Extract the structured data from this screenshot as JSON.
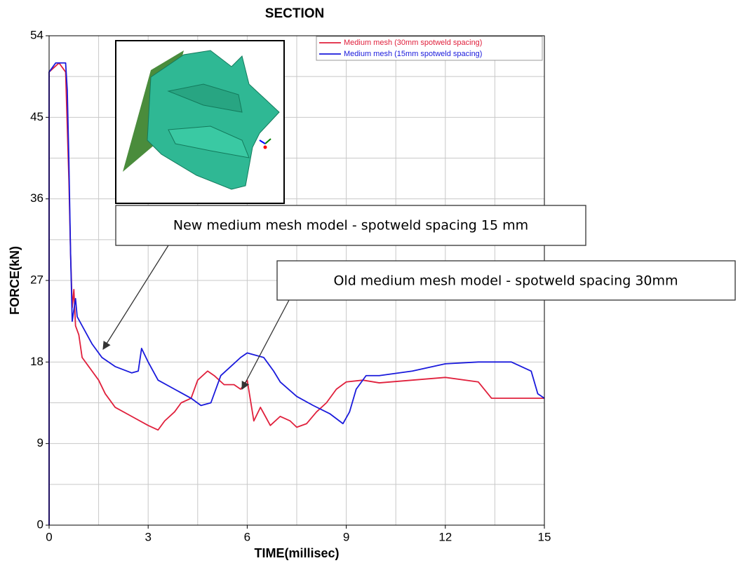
{
  "chart_data": {
    "type": "line",
    "title": "SECTION",
    "x_label": "TIME(millisec)",
    "y_label": "FORCE(kN)",
    "xlim": [
      0,
      15
    ],
    "ylim": [
      0,
      54
    ],
    "xticks": [
      0,
      3,
      6,
      9,
      12,
      15
    ],
    "yticks": [
      0,
      9,
      18,
      27,
      36,
      45,
      54
    ],
    "grid": true,
    "minor_grid": true,
    "legend": "upper right",
    "annotations": [
      "New medium mesh model - spotweld spacing 15 mm",
      "Old medium mesh model - spotweld spacing 30mm"
    ],
    "series": [
      {
        "name": "Medium mesh (30mm spotweld spacing)",
        "color": "#e0203c",
        "x": [
          0,
          0,
          0.3,
          0.5,
          0.6,
          0.65,
          0.7,
          0.75,
          0.8,
          0.9,
          1.0,
          1.2,
          1.5,
          1.7,
          2.0,
          2.5,
          3.0,
          3.3,
          3.5,
          3.8,
          4.0,
          4.3,
          4.5,
          4.8,
          5.0,
          5.3,
          5.6,
          5.8,
          6.0,
          6.2,
          6.4,
          6.7,
          7.0,
          7.3,
          7.5,
          7.8,
          8.1,
          8.4,
          8.7,
          9.0,
          9.5,
          10,
          11,
          12,
          13,
          13.4,
          14,
          15
        ],
        "values": [
          0,
          50,
          51,
          50,
          38,
          30,
          24,
          26,
          22,
          21,
          18.5,
          17.5,
          16,
          14.5,
          13,
          12,
          11,
          10.5,
          11.5,
          12.5,
          13.5,
          14,
          16,
          17,
          16.5,
          15.5,
          15.5,
          15,
          16,
          11.5,
          13,
          11,
          12,
          11.5,
          10.8,
          11.2,
          12.5,
          13.5,
          15,
          15.8,
          16,
          15.7,
          16,
          16.3,
          15.8,
          14,
          14,
          14
        ]
      },
      {
        "name": "Medium mesh (15mm spotweld spacing)",
        "color": "#1a1adc",
        "x": [
          0,
          0,
          0.2,
          0.5,
          0.55,
          0.6,
          0.65,
          0.7,
          0.8,
          0.85,
          1.0,
          1.3,
          1.6,
          2.0,
          2.5,
          2.7,
          2.8,
          3.0,
          3.3,
          3.8,
          4.3,
          4.6,
          4.9,
          5.2,
          5.5,
          5.8,
          6.0,
          6.5,
          6.8,
          7.0,
          7.5,
          8.0,
          8.5,
          8.9,
          9.1,
          9.3,
          9.6,
          10,
          11,
          12,
          13,
          14,
          14.6,
          14.8,
          15
        ],
        "values": [
          0,
          50,
          51,
          51,
          48,
          40,
          30,
          22.5,
          25,
          23,
          22,
          20,
          18.5,
          17.5,
          16.8,
          17,
          19.5,
          18,
          16,
          15,
          14,
          13.2,
          13.5,
          16.5,
          17.5,
          18.5,
          19,
          18.5,
          17,
          15.8,
          14.2,
          13.2,
          12.3,
          11.2,
          12.5,
          15,
          16.5,
          16.5,
          17,
          17.8,
          18,
          18,
          17,
          14.5,
          14
        ]
      }
    ]
  }
}
